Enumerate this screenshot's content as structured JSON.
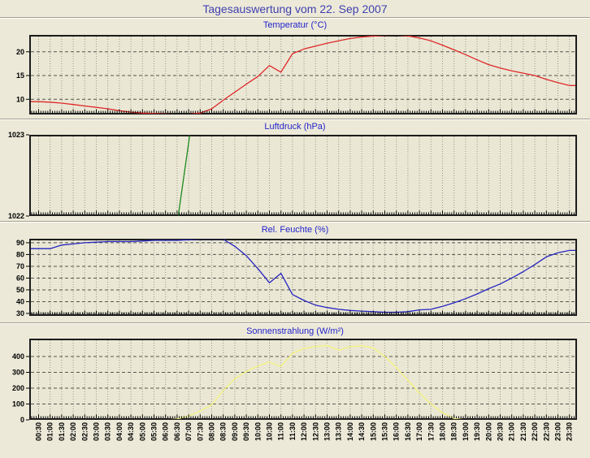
{
  "page": {
    "title": "Tagesauswertung vom 22. Sep 2007"
  },
  "colors": {
    "background": "#ece9d8",
    "plot_bg": "#eae7d5",
    "frame": "#1c1c1c",
    "grid_h": "#55554c",
    "grid_v": "#9c9989",
    "page_title": "#4040b0",
    "chart_title": "#2323cc",
    "axis_text": "#000000",
    "temperature": "#e02828",
    "pressure": "#1e8a1e",
    "humidity": "#2525c0",
    "radiation": "#f4f47c"
  },
  "x_axis": {
    "labels": [
      "00:30",
      "01:00",
      "01:30",
      "02:00",
      "02:30",
      "03:00",
      "03:30",
      "04:00",
      "04:30",
      "05:00",
      "05:30",
      "06:00",
      "06:30",
      "07:00",
      "07:30",
      "08:00",
      "08:30",
      "09:00",
      "09:30",
      "10:00",
      "10:30",
      "11:00",
      "11:30",
      "12:00",
      "12:30",
      "13:00",
      "13:30",
      "14:00",
      "14:30",
      "15:00",
      "15:30",
      "16:00",
      "16:30",
      "17:00",
      "17:30",
      "18:00",
      "18:30",
      "19:00",
      "19:30",
      "20:00",
      "20:30",
      "21:00",
      "21:30",
      "22:00",
      "22:30",
      "23:00",
      "23:30"
    ]
  },
  "chart_data": [
    {
      "type": "line",
      "title": "Temperatur (°C)",
      "color": "temperature",
      "ylim": [
        6.8,
        23.55
      ],
      "yticks": [
        10,
        15,
        20
      ],
      "grid": true,
      "legend_position": "none",
      "values": [
        9.5,
        9.4,
        9.2,
        8.9,
        8.6,
        8.3,
        8.0,
        7.6,
        7.3,
        7.1,
        7.0,
        6.9,
        6.85,
        6.85,
        7.1,
        8.0,
        9.8,
        11.5,
        13.2,
        14.8,
        17.1,
        15.7,
        19.6,
        20.6,
        21.2,
        21.8,
        22.3,
        22.8,
        23.1,
        23.3,
        23.45,
        23.5,
        23.35,
        22.9,
        22.3,
        21.4,
        20.4,
        19.4,
        18.3,
        17.3,
        16.6,
        16.0,
        15.5,
        15.0,
        14.2,
        13.5,
        12.9
      ]
    },
    {
      "type": "line",
      "title": "Luftdruck (hPa)",
      "color": "pressure",
      "ylim": [
        1022,
        1023
      ],
      "yticks": [
        1022,
        1023
      ],
      "grid": true,
      "legend_position": "none",
      "values": [
        null,
        null,
        null,
        null,
        null,
        null,
        null,
        null,
        null,
        null,
        null,
        null,
        1021.9,
        1022.9,
        1023.9,
        null,
        null,
        null,
        null,
        null,
        null,
        null,
        null,
        null,
        null,
        null,
        null,
        null,
        null,
        null,
        null,
        null,
        null,
        null,
        null,
        null,
        null,
        null,
        null,
        null,
        null,
        null,
        null,
        null,
        null,
        null,
        null
      ]
    },
    {
      "type": "line",
      "title": "Rel. Feuchte (%)",
      "color": "humidity",
      "ylim": [
        27.9,
        93.4
      ],
      "yticks": [
        30,
        40,
        50,
        60,
        70,
        80,
        90
      ],
      "grid": true,
      "legend_position": "none",
      "values": [
        85,
        85,
        88,
        89,
        90,
        90.5,
        91,
        91,
        91,
        91.5,
        92,
        92,
        92,
        92.5,
        93,
        93,
        93,
        87,
        79,
        68,
        56,
        64,
        46,
        41,
        37,
        35,
        33.5,
        32.5,
        32,
        31.5,
        31,
        31,
        31.5,
        33,
        33.5,
        36,
        39,
        42.5,
        46.5,
        51,
        55,
        60,
        65.5,
        71.5,
        78,
        81.5,
        83.5
      ]
    },
    {
      "type": "line",
      "title": "Sonnenstrahlung (W/m²)",
      "color": "radiation",
      "ylim": [
        0,
        513
      ],
      "yticks": [
        0,
        100,
        200,
        300,
        400
      ],
      "grid": true,
      "legend_position": "none",
      "values": [
        0,
        0,
        0,
        0,
        0,
        0,
        0,
        0,
        0,
        0,
        0,
        0,
        5,
        25,
        55,
        95,
        185,
        260,
        305,
        340,
        365,
        337,
        420,
        452,
        462,
        470,
        440,
        462,
        468,
        455,
        400,
        330,
        250,
        170,
        100,
        45,
        8,
        0,
        0,
        0,
        0,
        0,
        0,
        0,
        0,
        0,
        0
      ]
    }
  ]
}
